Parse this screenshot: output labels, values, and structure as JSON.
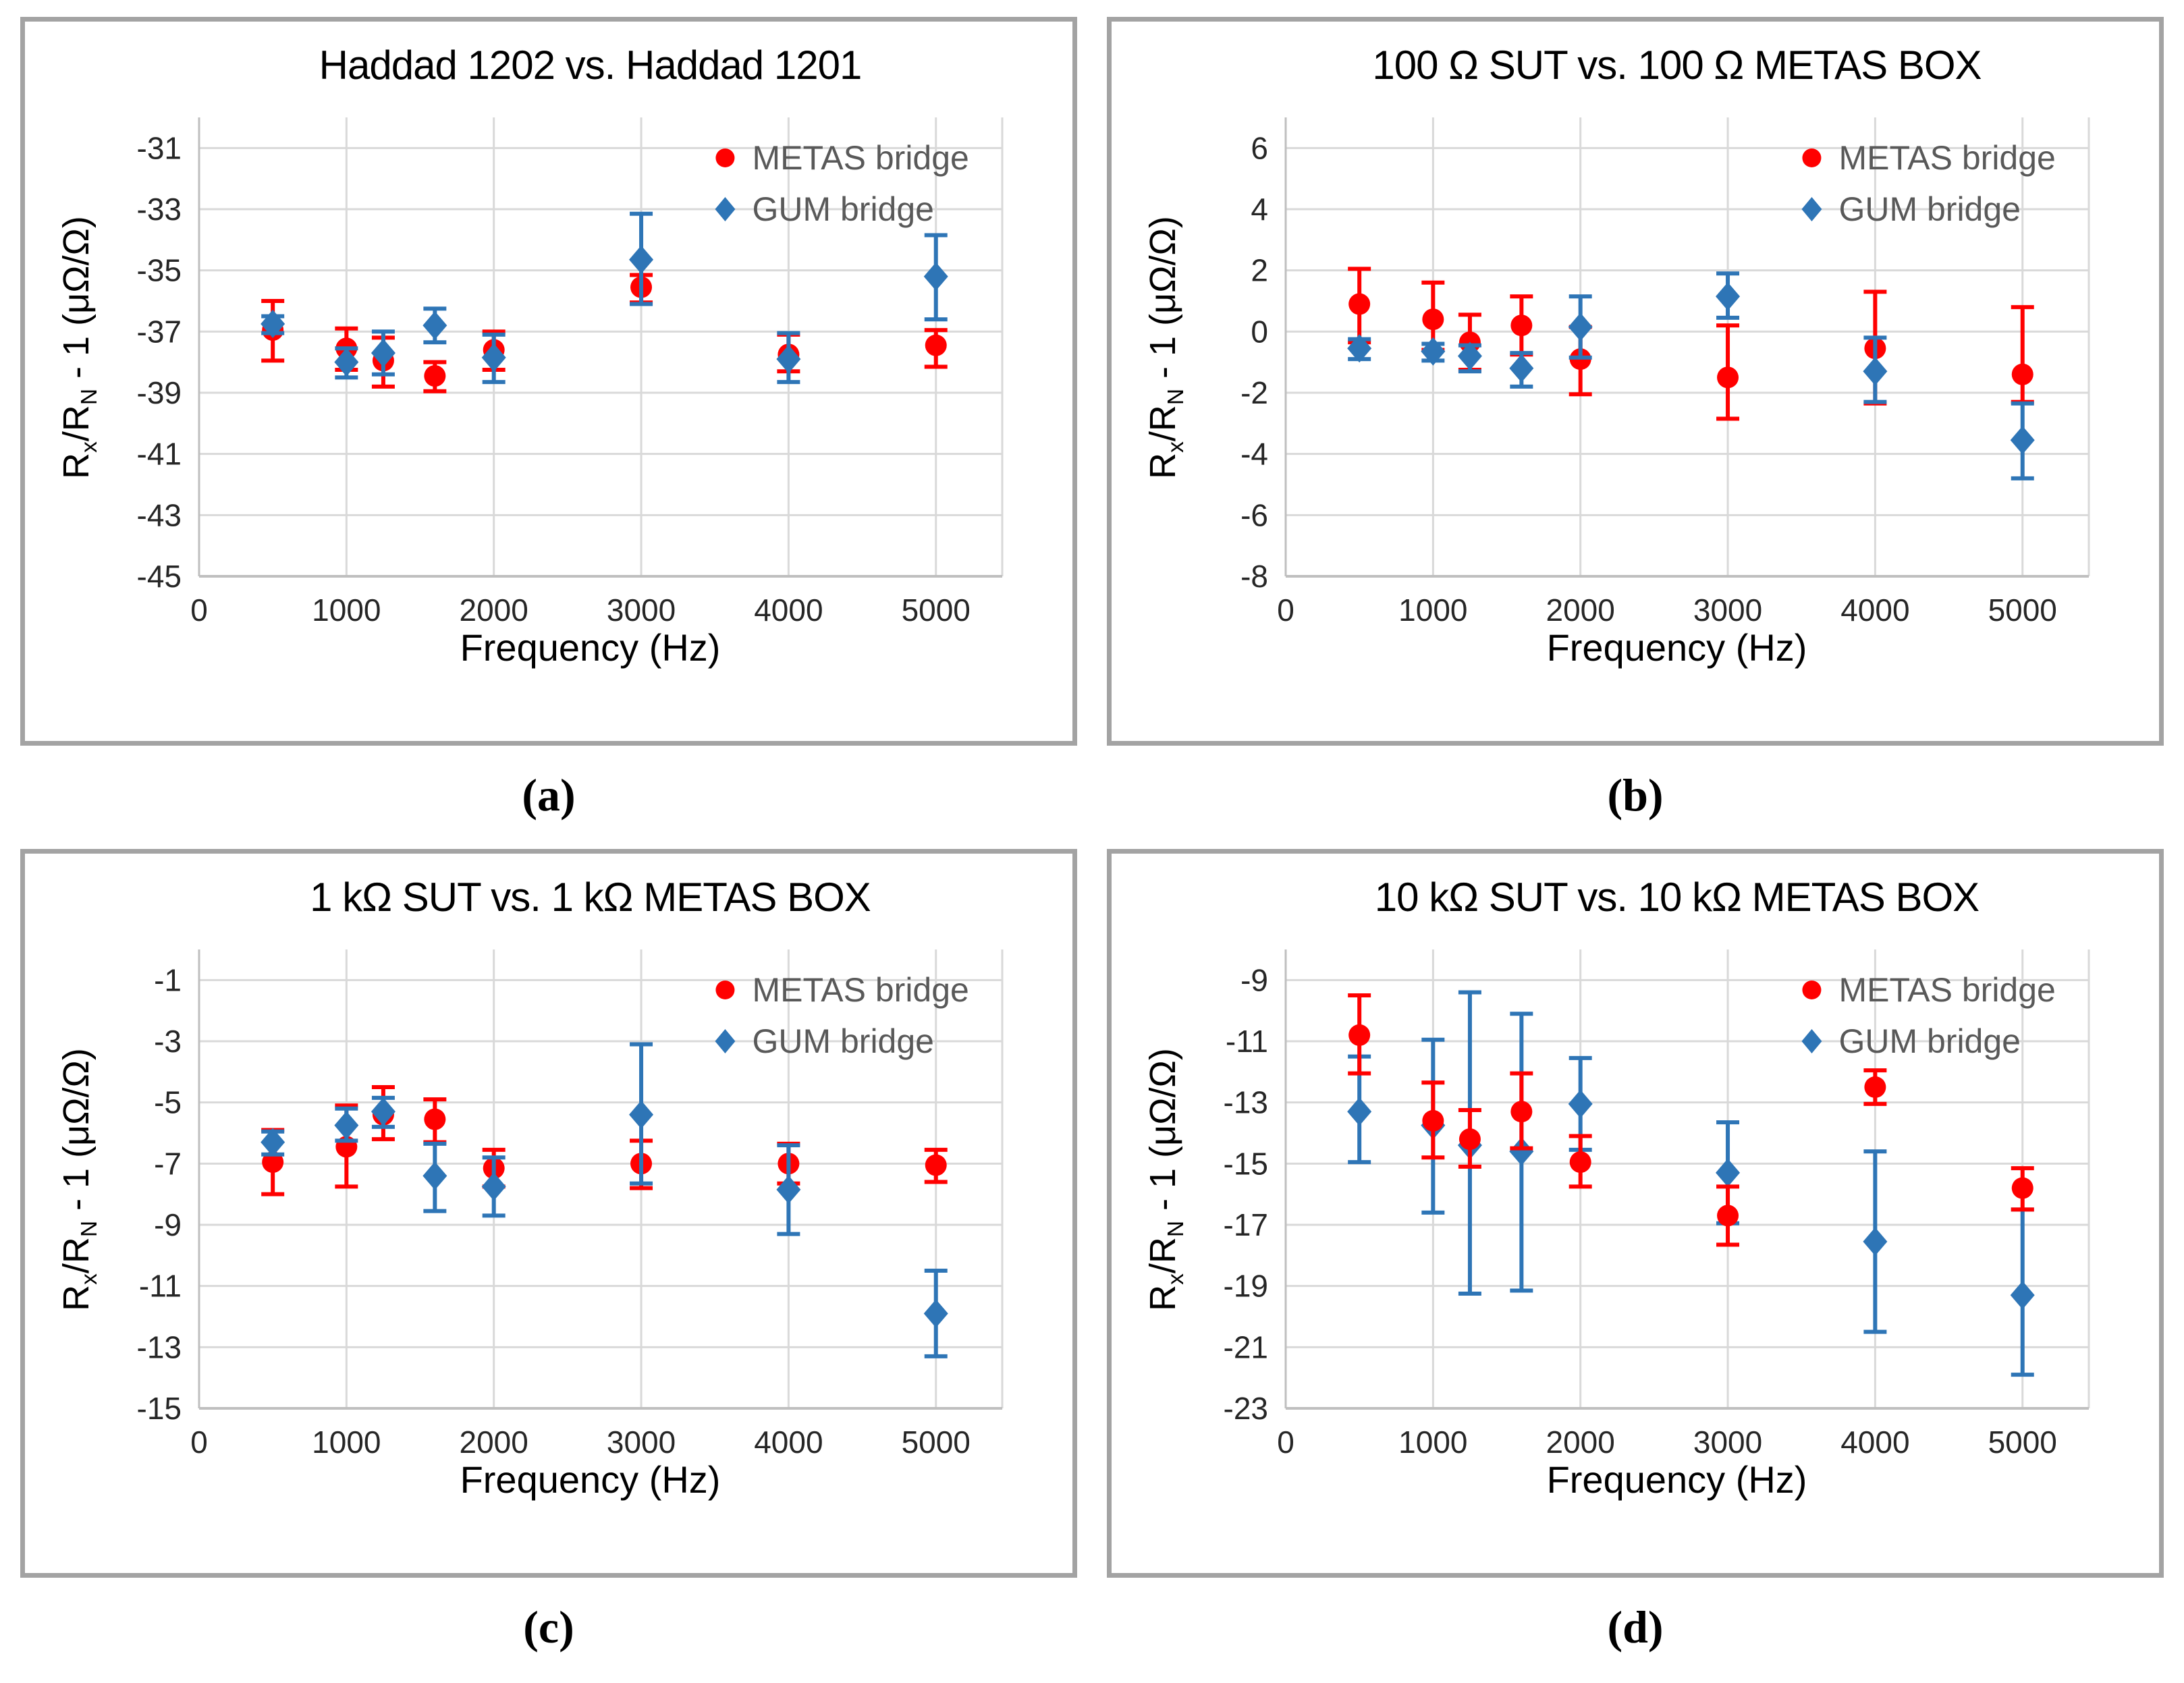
{
  "colors": {
    "metas": "#ff0000",
    "gum": "#2e75b6",
    "legend_text": "#595959",
    "gridline": "#d9d9d9",
    "axis_line": "#bfbfbf",
    "tick": "#262626",
    "panel_border": "#a3a3a3"
  },
  "xlabel": "Frequency (Hz)",
  "ylabel": "Rx/RN - 1  (μΩ/Ω)",
  "ylabel_segments": [
    {
      "t": "R"
    },
    {
      "t": "x",
      "sub": true
    },
    {
      "t": "/R"
    },
    {
      "t": "N",
      "sub": true
    },
    {
      "t": " - 1  (μΩ/Ω)"
    }
  ],
  "legend": {
    "metas": "METAS bridge",
    "gum": "GUM bridge"
  },
  "panels": [
    {
      "label": "(a)",
      "chart_data": {
        "type": "scatter",
        "title": "Haddad 1202 vs. Haddad 1201",
        "xlabel": "Frequency (Hz)",
        "ylabel": "Rx/RN - 1  (μΩ/Ω)",
        "xlim": [
          0,
          5450
        ],
        "ylim": [
          -45,
          -30
        ],
        "xticks": [
          0,
          1000,
          2000,
          3000,
          4000,
          5000
        ],
        "yticks": [
          -31,
          -33,
          -35,
          -37,
          -39,
          -41,
          -43,
          -45
        ],
        "legend_position": "inside-top-right",
        "grid": true,
        "red_on_top": false,
        "x": [
          500,
          1000,
          1250,
          1600,
          2000,
          3000,
          4000,
          5000
        ],
        "series": [
          {
            "name": "METAS bridge",
            "marker": "circle",
            "color_key": "metas",
            "values": [
              -36.95,
              -37.55,
              -37.95,
              -38.45,
              -37.6,
              -35.55,
              -37.75,
              -37.45
            ],
            "err_up": [
              0.95,
              0.65,
              0.75,
              0.45,
              0.6,
              0.4,
              0.65,
              0.5
            ],
            "err_down": [
              1.0,
              0.7,
              0.85,
              0.5,
              0.65,
              0.5,
              0.55,
              0.7
            ]
          },
          {
            "name": "GUM bridge",
            "marker": "diamond",
            "color_key": "gum",
            "values": [
              -36.75,
              -38.0,
              -37.7,
              -36.8,
              -37.85,
              -34.65,
              -37.9,
              -35.2
            ],
            "err_up": [
              0.25,
              0.45,
              0.7,
              0.55,
              0.75,
              1.5,
              0.85,
              1.35
            ],
            "err_down": [
              0.3,
              0.5,
              0.7,
              0.55,
              0.8,
              1.45,
              0.75,
              1.4
            ]
          }
        ]
      }
    },
    {
      "label": "(b)",
      "chart_data": {
        "type": "scatter",
        "title": "100 Ω SUT vs. 100 Ω METAS BOX",
        "xlabel": "Frequency (Hz)",
        "ylabel": "Rx/RN - 1  (μΩ/Ω)",
        "xlim": [
          0,
          5450
        ],
        "ylim": [
          -8,
          7
        ],
        "xticks": [
          0,
          1000,
          2000,
          3000,
          4000,
          5000
        ],
        "yticks": [
          6,
          4,
          2,
          0,
          -2,
          -4,
          -6,
          -8
        ],
        "legend_position": "inside-top-right",
        "grid": true,
        "red_on_top": false,
        "x": [
          500,
          1000,
          1250,
          1600,
          2000,
          3000,
          4000,
          5000
        ],
        "series": [
          {
            "name": "METAS bridge",
            "marker": "circle",
            "color_key": "metas",
            "values": [
              0.9,
              0.4,
              -0.35,
              0.2,
              -0.9,
              -1.5,
              -0.55,
              -1.4
            ],
            "err_up": [
              1.15,
              1.2,
              0.9,
              0.95,
              1.05,
              1.7,
              1.85,
              2.2
            ],
            "err_down": [
              1.25,
              1.0,
              0.9,
              0.95,
              1.15,
              1.35,
              1.8,
              0.9
            ]
          },
          {
            "name": "GUM bridge",
            "marker": "diamond",
            "color_key": "gum",
            "values": [
              -0.55,
              -0.65,
              -0.8,
              -1.2,
              0.15,
              1.15,
              -1.3,
              -3.55
            ],
            "err_up": [
              0.3,
              0.25,
              0.35,
              0.5,
              1.0,
              0.75,
              1.1,
              1.2
            ],
            "err_down": [
              0.35,
              0.3,
              0.5,
              0.6,
              1.0,
              0.7,
              1.0,
              1.25
            ]
          }
        ]
      }
    },
    {
      "label": "(c)",
      "chart_data": {
        "type": "scatter",
        "title": "1 kΩ SUT vs. 1 kΩ METAS BOX",
        "xlabel": "Frequency (Hz)",
        "ylabel": "Rx/RN - 1  (μΩ/Ω)",
        "xlim": [
          0,
          5450
        ],
        "ylim": [
          -15,
          0
        ],
        "xticks": [
          0,
          1000,
          2000,
          3000,
          4000,
          5000
        ],
        "yticks": [
          -1,
          -3,
          -5,
          -7,
          -9,
          -11,
          -13,
          -15
        ],
        "legend_position": "inside-top-right",
        "grid": true,
        "red_on_top": false,
        "x": [
          500,
          1000,
          1250,
          1600,
          2000,
          3000,
          4000,
          5000
        ],
        "series": [
          {
            "name": "METAS bridge",
            "marker": "circle",
            "color_key": "metas",
            "values": [
              -6.95,
              -6.45,
              -5.4,
              -5.55,
              -7.15,
              -7.0,
              -7.0,
              -7.05
            ],
            "err_up": [
              1.05,
              1.35,
              0.9,
              0.65,
              0.6,
              0.75,
              0.65,
              0.5
            ],
            "err_down": [
              1.05,
              1.3,
              0.8,
              0.75,
              0.6,
              0.8,
              0.65,
              0.55
            ]
          },
          {
            "name": "GUM bridge",
            "marker": "diamond",
            "color_key": "gum",
            "values": [
              -6.3,
              -5.75,
              -5.3,
              -7.4,
              -7.75,
              -5.4,
              -7.85,
              -11.9
            ],
            "err_up": [
              0.35,
              0.55,
              0.45,
              1.05,
              0.95,
              2.3,
              1.45,
              1.4
            ],
            "err_down": [
              0.4,
              0.5,
              0.5,
              1.15,
              0.95,
              2.25,
              1.45,
              1.4
            ]
          }
        ]
      }
    },
    {
      "label": "(d)",
      "chart_data": {
        "type": "scatter",
        "title": "10 kΩ SUT vs. 10 kΩ METAS BOX",
        "xlabel": "Frequency (Hz)",
        "ylabel": "Rx/RN - 1  (μΩ/Ω)",
        "xlim": [
          0,
          5450
        ],
        "ylim": [
          -23,
          -8
        ],
        "xticks": [
          0,
          1000,
          2000,
          3000,
          4000,
          5000
        ],
        "yticks": [
          -9,
          -11,
          -13,
          -15,
          -17,
          -19,
          -21,
          -23
        ],
        "legend_position": "inside-top-right",
        "grid": true,
        "red_on_top": true,
        "x": [
          500,
          1000,
          1250,
          1600,
          2000,
          3000,
          4000,
          5000
        ],
        "series": [
          {
            "name": "METAS bridge",
            "marker": "circle",
            "color_key": "metas",
            "values": [
              -10.8,
              -13.6,
              -14.2,
              -13.3,
              -14.95,
              -16.7,
              -12.5,
              -15.8
            ],
            "err_up": [
              1.3,
              1.25,
              0.95,
              1.25,
              0.85,
              0.95,
              0.55,
              0.65
            ],
            "err_down": [
              1.25,
              1.2,
              0.9,
              1.2,
              0.8,
              0.95,
              0.55,
              0.7
            ]
          },
          {
            "name": "GUM bridge",
            "marker": "diamond",
            "color_key": "gum",
            "values": [
              -13.3,
              -13.75,
              -14.4,
              -14.6,
              -13.05,
              -15.3,
              -17.55,
              -19.3
            ],
            "err_up": [
              1.8,
              2.8,
              5.0,
              4.5,
              1.5,
              1.65,
              2.95,
              2.8
            ],
            "err_down": [
              1.65,
              2.85,
              4.85,
              4.55,
              1.5,
              1.65,
              2.95,
              2.6
            ]
          }
        ]
      }
    }
  ]
}
